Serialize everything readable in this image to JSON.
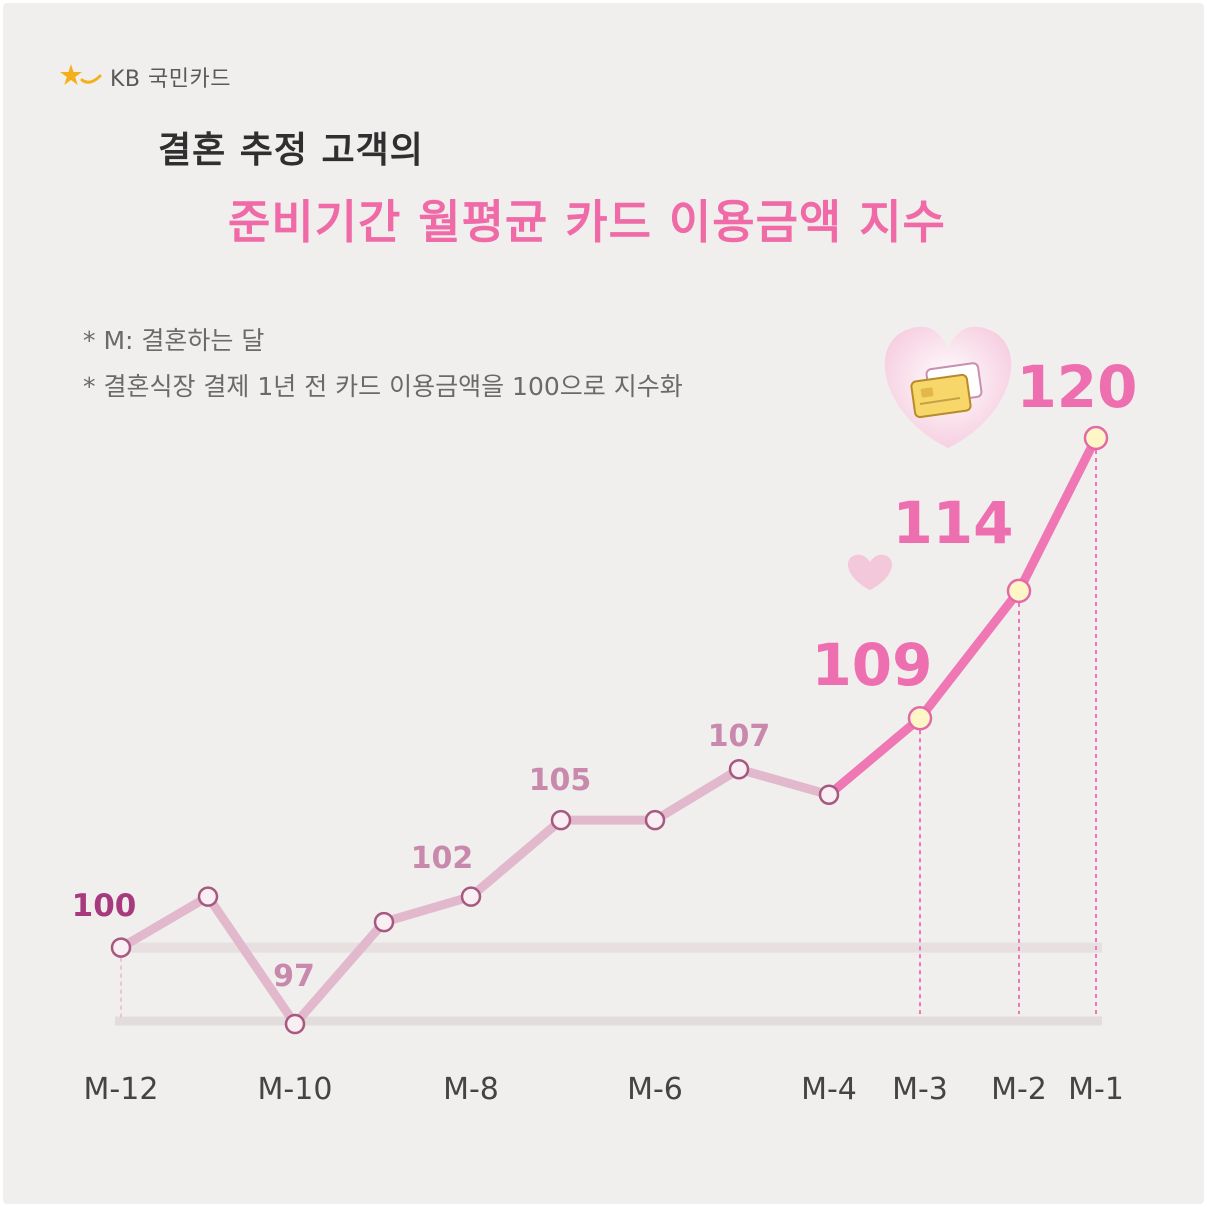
{
  "brand": {
    "name": "KB 국민카드",
    "logo_icon": "kb-star-logo-icon",
    "logo_color": "#f3b01b"
  },
  "title": {
    "line1": "결혼 추정 고객의",
    "line2": "준비기간 월평균 카드 이용금액 지수"
  },
  "notes": [
    "* M: 결혼하는 달",
    "* 결혼식장 결제 1년 전 카드 이용금액을 100으로 지수화"
  ],
  "decorations": [
    "heart-icon",
    "credit-card-icon",
    "small-heart-icon"
  ],
  "colors": {
    "background": "#f1efee",
    "title_accent": "#ef6aa6",
    "line_main": "#e2b8cd",
    "line_highlight": "#ee77b4",
    "label_baseline": "#a63a7c",
    "label_regular": "#c889ad",
    "label_highlight": "#ee6fb0",
    "point_highlight_fill": "#fff6c8"
  },
  "chart_data": {
    "type": "line",
    "x": [
      "M-12",
      "M-11",
      "M-10",
      "M-9",
      "M-8",
      "M-7",
      "M-6",
      "M-5",
      "M-4",
      "M-3",
      "M-2",
      "M-1"
    ],
    "values": [
      100,
      102,
      97,
      101,
      102,
      105,
      105,
      107,
      106,
      109,
      114,
      120
    ],
    "tick_labels": [
      "M-12",
      "M-10",
      "M-8",
      "M-6",
      "M-4",
      "M-3",
      "M-2",
      "M-1"
    ],
    "data_labels": [
      {
        "x": "M-12",
        "text": "100",
        "style": "baseline"
      },
      {
        "x": "M-10",
        "text": "97",
        "style": "regular"
      },
      {
        "x": "M-8",
        "text": "102",
        "style": "regular"
      },
      {
        "x": "M-7",
        "text": "105",
        "style": "regular"
      },
      {
        "x": "M-5",
        "text": "107",
        "style": "regular"
      },
      {
        "x": "M-3",
        "text": "109",
        "style": "highlight"
      },
      {
        "x": "M-2",
        "text": "114",
        "style": "highlight"
      },
      {
        "x": "M-1",
        "text": "120",
        "style": "highlight"
      }
    ],
    "highlighted": [
      "M-3",
      "M-2",
      "M-1"
    ],
    "reference_line": 100,
    "ylim": [
      97,
      120
    ],
    "title": "",
    "xlabel": "",
    "ylabel": ""
  }
}
